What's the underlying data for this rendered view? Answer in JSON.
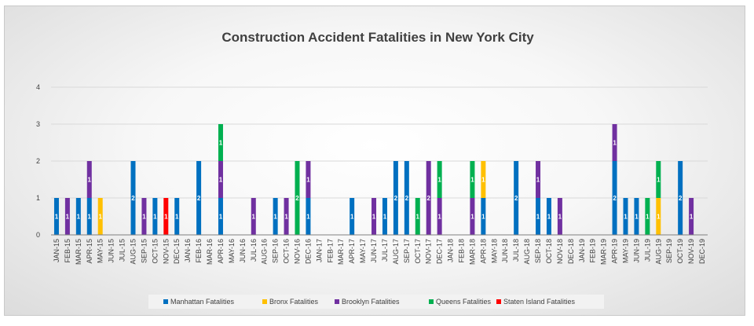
{
  "chart_data": {
    "type": "bar",
    "stacked": true,
    "title": "Construction Accident Fatalities in New York City",
    "xlabel": "",
    "ylabel": "",
    "ylim": [
      0,
      4
    ],
    "yticks": [
      0,
      1,
      2,
      3,
      4
    ],
    "grid": true,
    "legend_position": "bottom",
    "categories": [
      "JAN-15",
      "FEB-15",
      "MAR-15",
      "APR-15",
      "MAY-15",
      "JUN-15",
      "JUL-15",
      "AUG-15",
      "SEP-15",
      "OCT-15",
      "NOV-15",
      "DEC-15",
      "JAN-16",
      "FEB-16",
      "MAR-16",
      "APR-16",
      "MAY-16",
      "JUN-16",
      "JUL-16",
      "AUG-16",
      "SEP-16",
      "OCT-16",
      "NOV-16",
      "DEC-16",
      "JAN-17",
      "FEB-17",
      "MAR-17",
      "APR-17",
      "MAY-17",
      "JUN-17",
      "JUL-17",
      "AUG-17",
      "SEP-17",
      "OCT-17",
      "NOV-17",
      "DEC-17",
      "JAN-18",
      "FEB-18",
      "MAR-18",
      "APR-18",
      "MAY-18",
      "JUN-18",
      "JUL-18",
      "AUG-18",
      "SEP-18",
      "OCT-18",
      "NOV-18",
      "DEC-18",
      "JAN-19",
      "FEB-19",
      "MAR-19",
      "APR-19",
      "MAY-19",
      "JUN-19",
      "JUL-19",
      "AUG-19",
      "SEP-19",
      "OCT-19",
      "NOV-19",
      "DEC-19"
    ],
    "series": [
      {
        "name": "Manhattan Fatalities",
        "color": "#0070C0",
        "values": [
          1,
          0,
          1,
          1,
          0,
          0,
          0,
          2,
          0,
          1,
          0,
          1,
          0,
          2,
          0,
          1,
          0,
          0,
          0,
          0,
          1,
          0,
          0,
          1,
          0,
          0,
          0,
          1,
          0,
          0,
          1,
          2,
          2,
          0,
          0,
          0,
          0,
          0,
          0,
          1,
          0,
          0,
          2,
          0,
          1,
          1,
          0,
          0,
          0,
          0,
          0,
          2,
          1,
          1,
          0,
          0,
          0,
          2,
          0,
          0
        ]
      },
      {
        "name": "Bronx Fatalities",
        "color": "#FFC000",
        "values": [
          0,
          0,
          0,
          0,
          1,
          0,
          0,
          0,
          0,
          0,
          0,
          0,
          0,
          0,
          0,
          0,
          0,
          0,
          0,
          0,
          0,
          0,
          0,
          0,
          0,
          0,
          0,
          0,
          0,
          0,
          0,
          0,
          0,
          0,
          0,
          0,
          0,
          0,
          0,
          1,
          0,
          0,
          0,
          0,
          0,
          0,
          0,
          0,
          0,
          0,
          0,
          0,
          0,
          0,
          0,
          1,
          0,
          0,
          0,
          0
        ]
      },
      {
        "name": "Brooklyn Fatalities",
        "color": "#7030A0",
        "values": [
          0,
          1,
          0,
          1,
          0,
          0,
          0,
          0,
          1,
          0,
          0,
          0,
          0,
          0,
          0,
          1,
          0,
          0,
          1,
          0,
          0,
          1,
          0,
          1,
          0,
          0,
          0,
          0,
          0,
          1,
          0,
          0,
          0,
          0,
          2,
          1,
          0,
          0,
          1,
          0,
          0,
          0,
          0,
          0,
          1,
          0,
          1,
          0,
          0,
          0,
          0,
          1,
          0,
          0,
          0,
          0,
          0,
          0,
          1,
          0
        ]
      },
      {
        "name": "Queens Fatalities",
        "color": "#00B050",
        "values": [
          0,
          0,
          0,
          0,
          0,
          0,
          0,
          0,
          0,
          0,
          0,
          0,
          0,
          0,
          0,
          1,
          0,
          0,
          0,
          0,
          0,
          0,
          2,
          0,
          0,
          0,
          0,
          0,
          0,
          0,
          0,
          0,
          0,
          1,
          0,
          1,
          0,
          0,
          1,
          0,
          0,
          0,
          0,
          0,
          0,
          0,
          0,
          0,
          0,
          0,
          0,
          0,
          0,
          0,
          1,
          1,
          0,
          0,
          0,
          0
        ]
      },
      {
        "name": "Staten Island Fatalities",
        "color": "#FF0000",
        "values": [
          0,
          0,
          0,
          0,
          0,
          0,
          0,
          0,
          0,
          0,
          1,
          0,
          0,
          0,
          0,
          0,
          0,
          0,
          0,
          0,
          0,
          0,
          0,
          0,
          0,
          0,
          0,
          0,
          0,
          0,
          0,
          0,
          0,
          0,
          0,
          0,
          0,
          0,
          0,
          0,
          0,
          0,
          0,
          0,
          0,
          0,
          0,
          0,
          0,
          0,
          0,
          0,
          0,
          0,
          0,
          0,
          0,
          0,
          0,
          0
        ]
      }
    ]
  }
}
